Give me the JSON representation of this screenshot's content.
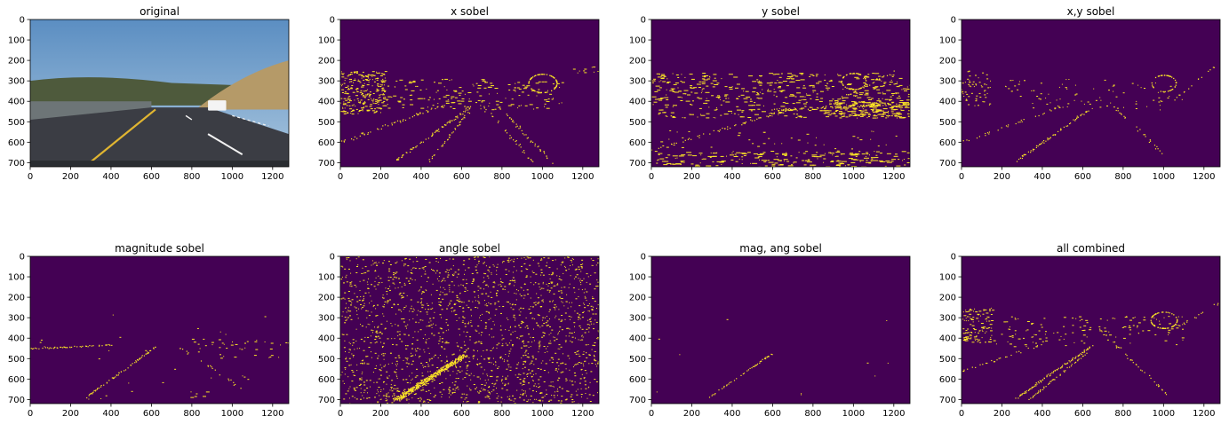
{
  "figure": {
    "panels": [
      {
        "title": "original",
        "kind": "photo"
      },
      {
        "title": "x sobel",
        "kind": "binary",
        "pattern": "x"
      },
      {
        "title": "y sobel",
        "kind": "binary",
        "pattern": "y"
      },
      {
        "title": "x,y sobel",
        "kind": "binary",
        "pattern": "xy"
      },
      {
        "title": "magnitude sobel",
        "kind": "binary",
        "pattern": "mag"
      },
      {
        "title": "angle sobel",
        "kind": "binary",
        "pattern": "ang"
      },
      {
        "title": "mag, ang sobel",
        "kind": "binary",
        "pattern": "magang"
      },
      {
        "title": "all combined",
        "kind": "binary",
        "pattern": "all"
      }
    ],
    "x_ticks": [
      "0",
      "200",
      "400",
      "600",
      "800",
      "1000",
      "1200"
    ],
    "y_ticks": [
      "0",
      "100",
      "200",
      "300",
      "400",
      "500",
      "600",
      "700"
    ],
    "colors": {
      "background": "#440154",
      "foreground": "#fde725",
      "sky_top": "#5b8ec2",
      "sky_bottom": "#a9c6de",
      "road": "#3b3d44",
      "hill_dry": "#b59a68",
      "trees": "#4e5a3c",
      "lane_yellow": "#e0b531",
      "lane_white": "#f2f2f2"
    }
  }
}
